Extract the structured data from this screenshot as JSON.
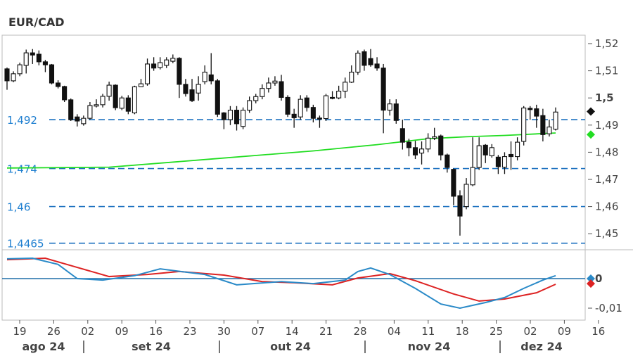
{
  "chart_data": {
    "type": "candlestick",
    "title": "EUR/CAD",
    "price_axis": {
      "ylim": [
        1.443,
        1.524
      ],
      "ticks": [
        "1,52",
        "1,51",
        "1,5",
        "1,49",
        "1,48",
        "1,47",
        "1,46",
        "1,45"
      ],
      "tick_values": [
        1.52,
        1.51,
        1.5,
        1.49,
        1.48,
        1.47,
        1.46,
        1.45
      ],
      "bold_tick": "1,5"
    },
    "osc_axis": {
      "ylim": [
        -0.0125,
        0.0075
      ],
      "ticks": [
        "0",
        "-0,01"
      ],
      "tick_values": [
        0,
        -0.01
      ]
    },
    "x_ticks": [
      "19",
      "26",
      "02",
      "09",
      "16",
      "23",
      "30",
      "07",
      "14",
      "21",
      "28",
      "04",
      "11",
      "18",
      "25",
      "02",
      "09",
      "16"
    ],
    "months": [
      "ago 24",
      "set 24",
      "out 24",
      "nov 24",
      "dez 24"
    ],
    "levels": [
      {
        "label": "1,492",
        "value": 1.492
      },
      {
        "label": "1,474",
        "value": 1.474
      },
      {
        "label": "1,46",
        "value": 1.46
      },
      {
        "label": "1,4465",
        "value": 1.4465
      }
    ],
    "candles_ohlc": [
      [
        1.5107,
        1.5112,
        1.503,
        1.5063
      ],
      [
        1.5063,
        1.5098,
        1.5058,
        1.5089
      ],
      [
        1.5089,
        1.513,
        1.508,
        1.5122
      ],
      [
        1.512,
        1.5178,
        1.509,
        1.5166
      ],
      [
        1.5166,
        1.518,
        1.5125,
        1.5158
      ],
      [
        1.5161,
        1.5175,
        1.512,
        1.5133
      ],
      [
        1.5133,
        1.514,
        1.5095,
        1.5122
      ],
      [
        1.5122,
        1.5125,
        1.505,
        1.5055
      ],
      [
        1.5055,
        1.5065,
        1.5035,
        1.5042
      ],
      [
        1.5042,
        1.5045,
        1.4985,
        1.4993
      ],
      [
        1.4993,
        1.4998,
        1.4915,
        1.492
      ],
      [
        1.493,
        1.494,
        1.4895,
        1.4915
      ],
      [
        1.4905,
        1.4935,
        1.4898,
        1.4925
      ],
      [
        1.4925,
        1.4985,
        1.492,
        1.4972
      ],
      [
        1.497,
        1.4995,
        1.4965,
        1.4975
      ],
      [
        1.4975,
        1.5015,
        1.4965,
        1.5006
      ],
      [
        1.5006,
        1.506,
        1.499,
        1.5047
      ],
      [
        1.5047,
        1.505,
        1.4955,
        1.4964
      ],
      [
        1.4962,
        1.5008,
        1.4955,
        1.5
      ],
      [
        1.5,
        1.501,
        1.494,
        1.4951
      ],
      [
        1.4945,
        1.5045,
        1.494,
        1.5041
      ],
      [
        1.5041,
        1.507,
        1.504,
        1.5052
      ],
      [
        1.5052,
        1.5145,
        1.5045,
        1.5125
      ],
      [
        1.5125,
        1.515,
        1.51,
        1.511
      ],
      [
        1.5112,
        1.515,
        1.5105,
        1.513
      ],
      [
        1.512,
        1.515,
        1.511,
        1.514
      ],
      [
        1.5135,
        1.516,
        1.5128,
        1.5146
      ],
      [
        1.5146,
        1.515,
        1.5,
        1.505
      ],
      [
        1.505,
        1.507,
        1.5005,
        1.5016
      ],
      [
        1.503,
        1.507,
        1.4985,
        1.499
      ],
      [
        1.5018,
        1.508,
        1.499,
        1.505
      ],
      [
        1.506,
        1.512,
        1.505,
        1.5095
      ],
      [
        1.5085,
        1.5165,
        1.505,
        1.5063
      ],
      [
        1.5063,
        1.507,
        1.493,
        1.494
      ],
      [
        1.4945,
        1.4948,
        1.4885,
        1.492
      ],
      [
        1.492,
        1.497,
        1.49,
        1.4955
      ],
      [
        1.4955,
        1.497,
        1.488,
        1.4905
      ],
      [
        1.4895,
        1.4965,
        1.4885,
        1.4955
      ],
      [
        1.4955,
        1.5005,
        1.4945,
        1.499
      ],
      [
        1.499,
        1.5015,
        1.498,
        1.5005
      ],
      [
        1.5005,
        1.505,
        1.4995,
        1.5035
      ],
      [
        1.5035,
        1.5075,
        1.502,
        1.5055
      ],
      [
        1.5055,
        1.508,
        1.5045,
        1.5062
      ],
      [
        1.506,
        1.5085,
        1.499,
        1.5002
      ],
      [
        1.5002,
        1.501,
        1.493,
        1.494
      ],
      [
        1.494,
        1.496,
        1.489,
        1.4927
      ],
      [
        1.493,
        1.501,
        1.492,
        1.4995
      ],
      [
        1.5,
        1.501,
        1.495,
        1.4965
      ],
      [
        1.4965,
        1.4975,
        1.491,
        1.4925
      ],
      [
        1.4926,
        1.4935,
        1.489,
        1.4924
      ],
      [
        1.4924,
        1.5015,
        1.4915,
        1.5008
      ],
      [
        1.5002,
        1.5025,
        1.4995,
        1.5
      ],
      [
        1.5,
        1.5045,
        1.4995,
        1.5025
      ],
      [
        1.5025,
        1.5075,
        1.5,
        1.5058
      ],
      [
        1.5058,
        1.512,
        1.5055,
        1.5095
      ],
      [
        1.5095,
        1.5175,
        1.5085,
        1.5165
      ],
      [
        1.517,
        1.5178,
        1.51,
        1.512
      ],
      [
        1.5145,
        1.518,
        1.5115,
        1.5122
      ],
      [
        1.5125,
        1.515,
        1.51,
        1.511
      ],
      [
        1.511,
        1.5125,
        1.487,
        1.4955
      ],
      [
        1.4955,
        1.4995,
        1.4935,
        1.4978
      ],
      [
        1.4978,
        1.4995,
        1.4905,
        1.4917
      ],
      [
        1.4887,
        1.492,
        1.481,
        1.4837
      ],
      [
        1.4837,
        1.485,
        1.4785,
        1.4817
      ],
      [
        1.4817,
        1.4842,
        1.4775,
        1.479
      ],
      [
        1.4797,
        1.484,
        1.4755,
        1.4812
      ],
      [
        1.4812,
        1.487,
        1.48,
        1.4852
      ],
      [
        1.4852,
        1.489,
        1.4845,
        1.4857
      ],
      [
        1.486,
        1.4865,
        1.477,
        1.479
      ],
      [
        1.479,
        1.4795,
        1.4725,
        1.4744
      ],
      [
        1.4737,
        1.474,
        1.4605,
        1.4638
      ],
      [
        1.464,
        1.466,
        1.4493,
        1.4565
      ],
      [
        1.46,
        1.4705,
        1.459,
        1.4682
      ],
      [
        1.468,
        1.4855,
        1.4675,
        1.4744
      ],
      [
        1.4744,
        1.4855,
        1.4735,
        1.4824
      ],
      [
        1.4826,
        1.483,
        1.476,
        1.479
      ],
      [
        1.4787,
        1.483,
        1.478,
        1.4817
      ],
      [
        1.4782,
        1.479,
        1.472,
        1.4747
      ],
      [
        1.4745,
        1.48,
        1.472,
        1.4784
      ],
      [
        1.4792,
        1.484,
        1.4735,
        1.4784
      ],
      [
        1.4784,
        1.4855,
        1.477,
        1.4837
      ],
      [
        1.484,
        1.497,
        1.4825,
        1.4963
      ],
      [
        1.4962,
        1.497,
        1.492,
        1.4957
      ],
      [
        1.496,
        1.4975,
        1.489,
        1.4933
      ],
      [
        1.4935,
        1.496,
        1.484,
        1.4865
      ],
      [
        1.4868,
        1.492,
        1.4858,
        1.4893
      ],
      [
        1.4885,
        1.4965,
        1.488,
        1.4948
      ]
    ],
    "moving_average": {
      "color": "#22dd22",
      "points": [
        [
          0,
          1.4742
        ],
        [
          16,
          1.4745
        ],
        [
          32,
          1.4775
        ],
        [
          48,
          1.4805
        ],
        [
          58,
          1.4828
        ],
        [
          66,
          1.485
        ],
        [
          72,
          1.4857
        ],
        [
          78,
          1.4862
        ],
        [
          86,
          1.4871
        ]
      ]
    },
    "oscillator": {
      "series": [
        {
          "name": "fast",
          "color": "#2a8ac8",
          "points": [
            [
              0,
              0.0067
            ],
            [
              4,
              0.0069
            ],
            [
              8,
              0.0048
            ],
            [
              11,
              0.0
            ],
            [
              15,
              -0.0005
            ],
            [
              20,
              0.001
            ],
            [
              24,
              0.0033
            ],
            [
              31,
              0.0014
            ],
            [
              36,
              -0.0021
            ],
            [
              43,
              -0.001
            ],
            [
              48,
              -0.0017
            ],
            [
              53,
              -0.0005
            ],
            [
              55,
              0.0024
            ],
            [
              57,
              0.0036
            ],
            [
              60,
              0.0014
            ],
            [
              64,
              -0.0033
            ],
            [
              68,
              -0.0086
            ],
            [
              71,
              -0.01
            ],
            [
              75,
              -0.0081
            ],
            [
              78,
              -0.0064
            ],
            [
              81,
              -0.0033
            ],
            [
              84,
              -0.0005
            ],
            [
              86,
              0.001
            ]
          ]
        },
        {
          "name": "slow",
          "color": "#dd2222",
          "points": [
            [
              0,
              0.0064
            ],
            [
              6,
              0.0069
            ],
            [
              11,
              0.0038
            ],
            [
              16,
              0.0007
            ],
            [
              22,
              0.0014
            ],
            [
              27,
              0.0024
            ],
            [
              34,
              0.0012
            ],
            [
              40,
              -0.001
            ],
            [
              45,
              -0.0014
            ],
            [
              51,
              -0.0021
            ],
            [
              55,
              0.0002
            ],
            [
              60,
              0.0017
            ],
            [
              64,
              -0.0007
            ],
            [
              70,
              -0.0052
            ],
            [
              74,
              -0.0076
            ],
            [
              78,
              -0.0069
            ],
            [
              83,
              -0.0048
            ],
            [
              86,
              -0.0019
            ]
          ]
        }
      ],
      "zero_line_color": "#1f6fa8"
    },
    "markers": [
      {
        "name": "last-price",
        "value": 1.495,
        "color": "#111111"
      },
      {
        "name": "ma-value",
        "value": 1.4865,
        "color": "#22dd22"
      },
      {
        "name": "osc-fast",
        "value": 0.0,
        "color": "#2a8ac8"
      },
      {
        "name": "osc-slow",
        "value": -0.0017,
        "color": "#dd2222"
      }
    ]
  }
}
